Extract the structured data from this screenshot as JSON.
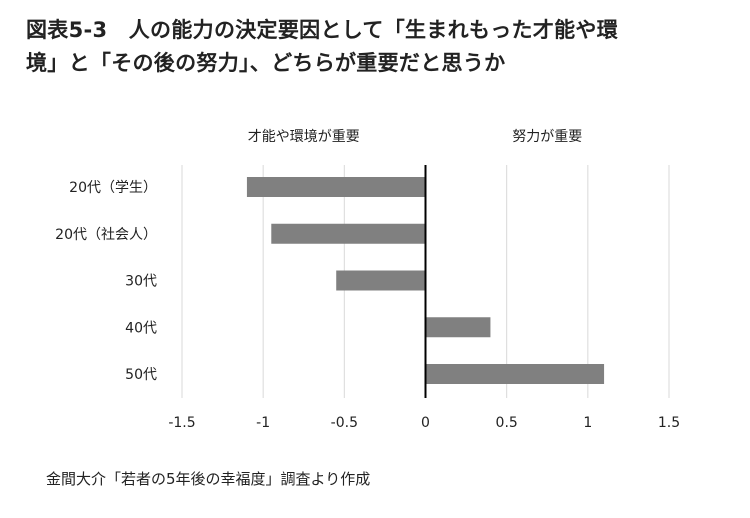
{
  "title_line1": "図表5-3　人の能力の決定要因として「生まれもった才能や環",
  "title_line2": "境」と「その後の努力」、どちらが重要だと思うか",
  "source": "金間大介「若者の5年後の幸福度」調査より作成",
  "chart_data": {
    "type": "bar",
    "orientation": "horizontal",
    "title": "図表5-3　人の能力の決定要因として「生まれもった才能や環境」と「その後の努力」、どちらが重要だと思うか",
    "categories": [
      "20代（学生）",
      "20代（社会人）",
      "30代",
      "40代",
      "50代"
    ],
    "values": [
      -1.1,
      -0.95,
      -0.55,
      0.4,
      1.1
    ],
    "xlim": [
      -1.5,
      1.5
    ],
    "xticks": [
      -1.5,
      -1,
      -0.5,
      0,
      0.5,
      1,
      1.5
    ],
    "xtick_labels": [
      "-1.5",
      "-1",
      "-0.5",
      "0",
      "0.5",
      "1",
      "1.5"
    ],
    "annotations": [
      {
        "text": "才能や環境が重要",
        "side": "negative"
      },
      {
        "text": "努力が重要",
        "side": "positive"
      }
    ],
    "grid": "vertical",
    "bar_color": "#808080",
    "grid_color": "#d9d9d9",
    "zero_line_color": "#000000"
  }
}
